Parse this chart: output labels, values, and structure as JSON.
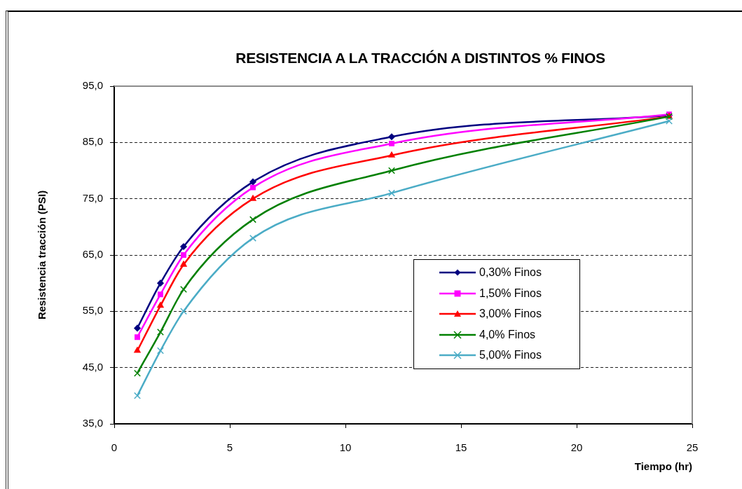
{
  "chart_data": {
    "type": "line",
    "title": "RESISTENCIA A LA TRACCIÓN A DISTINTOS % FINOS",
    "xlabel": "Tiempo (hr)",
    "ylabel": "Resistencia tracción (PSI)",
    "x": [
      1,
      2,
      3,
      6,
      12,
      24
    ],
    "xlim": [
      0,
      25
    ],
    "xticks": [
      0,
      5,
      10,
      15,
      20,
      25
    ],
    "ylim": [
      35,
      95
    ],
    "yticks": [
      {
        "value": 35,
        "label": "35,0"
      },
      {
        "value": 45,
        "label": "45,0"
      },
      {
        "value": 55,
        "label": "55,0"
      },
      {
        "value": 65,
        "label": "65,0"
      },
      {
        "value": 75,
        "label": "75,0"
      },
      {
        "value": 85,
        "label": "85,0"
      },
      {
        "value": 95,
        "label": "95,0"
      }
    ],
    "grid": "y",
    "legend": "bottom right",
    "series": [
      {
        "name": "0,30% Finos",
        "color": "#000080",
        "marker": "diamond",
        "values": [
          52.0,
          60.0,
          66.5,
          78.0,
          86.0,
          89.8
        ]
      },
      {
        "name": "1,50% Finos",
        "color": "#ff00ff",
        "marker": "square",
        "values": [
          50.4,
          58.0,
          65.0,
          77.0,
          84.8,
          90.0
        ]
      },
      {
        "name": "3,00% Finos",
        "color": "#ff0000",
        "marker": "triangle",
        "values": [
          48.0,
          56.0,
          63.3,
          75.0,
          82.7,
          89.6
        ]
      },
      {
        "name": "4,0% Finos",
        "color": "#008000",
        "marker": "cross",
        "values": [
          44.0,
          51.3,
          58.9,
          71.3,
          80.0,
          89.6
        ]
      },
      {
        "name": "5,00% Finos",
        "color": "#4bacc6",
        "marker": "cross",
        "values": [
          40.0,
          48.0,
          55.0,
          68.0,
          76.0,
          88.8
        ]
      }
    ]
  }
}
